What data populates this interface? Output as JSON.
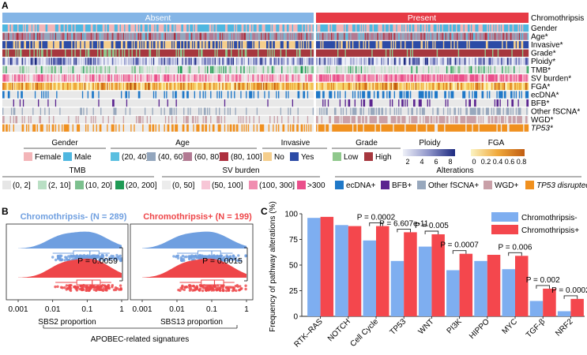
{
  "panelA": {
    "label": "A",
    "groups": [
      {
        "name": "Absent",
        "color": "#84b5e6",
        "count": 289
      },
      {
        "name": "Present",
        "color": "#e63a45",
        "count": 199
      }
    ],
    "rows": [
      {
        "label": "Chromothripsis",
        "italic": false,
        "kind": "group"
      },
      {
        "label": "Gender",
        "italic": false,
        "kind": "cat",
        "colors": [
          "#f3b5b8",
          "#4fb7e0"
        ],
        "weights": [
          0.45,
          0.55
        ]
      },
      {
        "label": "Age*",
        "italic": false,
        "kind": "cat",
        "colors": [
          "#5bbfe0",
          "#93a6bd",
          "#b27a93",
          "#ad2f3e"
        ],
        "weights": [
          0.1,
          0.3,
          0.45,
          0.15
        ]
      },
      {
        "label": "Invasive*",
        "italic": false,
        "kind": "cat",
        "colors": [
          "#f5ce8c",
          "#2c4ba6"
        ],
        "weights": [
          0.45,
          0.55
        ],
        "biasPresent": [
          0.2,
          0.8
        ]
      },
      {
        "label": "Grade*",
        "italic": false,
        "kind": "cat",
        "colors": [
          "#8fc88c",
          "#a6373e"
        ],
        "weights": [
          0.25,
          0.75
        ],
        "biasPresent": [
          0.1,
          0.9
        ]
      },
      {
        "label": "Ploidy*",
        "italic": false,
        "kind": "cont",
        "colors": [
          "#eef0f8",
          "#c9cce6",
          "#8e94c9",
          "#4b57a8",
          "#1d2a80"
        ],
        "weights": [
          0.3,
          0.3,
          0.2,
          0.12,
          0.08
        ]
      },
      {
        "label": "TMB*",
        "italic": false,
        "kind": "cat",
        "colors": [
          "#e6e6e6",
          "#b9dfc4",
          "#7cc08e",
          "#1f9a55"
        ],
        "weights": [
          0.6,
          0.2,
          0.13,
          0.07
        ]
      },
      {
        "label": "SV burden*",
        "italic": false,
        "kind": "cat",
        "colors": [
          "#ececec",
          "#f7c6d6",
          "#f08db0",
          "#ea4f8b"
        ],
        "weights": [
          0.25,
          0.3,
          0.28,
          0.17
        ],
        "biasPresent": [
          0.05,
          0.15,
          0.35,
          0.45
        ]
      },
      {
        "label": "FGA*",
        "italic": false,
        "kind": "cont",
        "colors": [
          "#fbf3c2",
          "#f6d36a",
          "#f0a93b",
          "#e0801e",
          "#c15d12"
        ],
        "weights": [
          0.2,
          0.3,
          0.25,
          0.15,
          0.1
        ]
      },
      {
        "label": "ecDNA*",
        "italic": false,
        "kind": "cat",
        "colors": [
          "#e8e8e8",
          "#1f78c8"
        ],
        "weights": [
          0.8,
          0.2
        ],
        "biasPresent": [
          0.6,
          0.4
        ]
      },
      {
        "label": "BFB*",
        "italic": false,
        "kind": "cat",
        "colors": [
          "#e8e8e8",
          "#5b2590"
        ],
        "weights": [
          0.93,
          0.07
        ],
        "biasPresent": [
          0.75,
          0.25
        ]
      },
      {
        "label": "Other fSCNA*",
        "italic": false,
        "kind": "cat",
        "colors": [
          "#e8e8e8",
          "#98a8bd"
        ],
        "weights": [
          0.85,
          0.15
        ],
        "biasPresent": [
          0.55,
          0.45
        ]
      },
      {
        "label": "WGD*",
        "italic": false,
        "kind": "cat",
        "colors": [
          "#ececec",
          "#c9a0a8"
        ],
        "weights": [
          0.75,
          0.25
        ],
        "biasPresent": [
          0.4,
          0.6
        ]
      },
      {
        "label": "TP53*",
        "italic": true,
        "kind": "cat",
        "colors": [
          "#ececec",
          "#f0901e"
        ],
        "weights": [
          0.6,
          0.4
        ],
        "biasPresent": [
          0.15,
          0.85
        ]
      }
    ],
    "legend_gender": {
      "title": "Gender",
      "items": [
        {
          "label": "Female",
          "color": "#f3b5b8"
        },
        {
          "label": "Male",
          "color": "#4fb7e0"
        }
      ]
    },
    "legend_age": {
      "title": "Age",
      "items": [
        {
          "label": "(20, 40]",
          "color": "#5bbfe0"
        },
        {
          "label": "(40, 60]",
          "color": "#93a6bd"
        },
        {
          "label": "(60, 80]",
          "color": "#b27a93"
        },
        {
          "label": "(80, 100]",
          "color": "#ad2f3e"
        }
      ]
    },
    "legend_invasive": {
      "title": "Invasive",
      "items": [
        {
          "label": "No",
          "color": "#f5ce8c"
        },
        {
          "label": "Yes",
          "color": "#2c4ba6"
        }
      ]
    },
    "legend_grade": {
      "title": "Grade",
      "items": [
        {
          "label": "Low",
          "color": "#8fc88c"
        },
        {
          "label": "High",
          "color": "#a6373e"
        }
      ]
    },
    "legend_ploidy": {
      "title": "Ploidy",
      "ticks": [
        "2",
        "4",
        "6",
        "8"
      ],
      "grad": [
        "#eef0f8",
        "#8e94c9",
        "#1d2a80"
      ]
    },
    "legend_fga": {
      "title": "FGA",
      "ticks": [
        "0",
        "0.2",
        "0.4",
        "0.6",
        "0.8"
      ],
      "grad": [
        "#fbf3c2",
        "#f0a93b",
        "#c15d12"
      ]
    },
    "legend_tmb": {
      "title": "TMB",
      "items": [
        {
          "label": "(0, 2]",
          "color": "#e6e6e6"
        },
        {
          "label": "(2, 10]",
          "color": "#b9dfc4"
        },
        {
          "label": "(10, 20]",
          "color": "#7cc08e"
        },
        {
          "label": "(20, 200]",
          "color": "#1f9a55"
        }
      ]
    },
    "legend_sv": {
      "title": "SV burden",
      "items": [
        {
          "label": "(0, 50]",
          "color": "#ececec"
        },
        {
          "label": "(50, 100]",
          "color": "#f7c6d6"
        },
        {
          "label": "(100, 300]",
          "color": "#f08db0"
        },
        {
          "label": ">300",
          "color": "#ea4f8b"
        }
      ]
    },
    "legend_alt": {
      "title": "Alterations",
      "items": [
        {
          "label": "ecDNA+",
          "color": "#1f78c8",
          "italic": false
        },
        {
          "label": "BFB+",
          "color": "#5b2590",
          "italic": false
        },
        {
          "label": "Other fSCNA+",
          "color": "#98a8bd",
          "italic": false
        },
        {
          "label": "WGD+",
          "color": "#c9a0a8",
          "italic": false
        },
        {
          "label": "TP53 disrupted",
          "color": "#f0901e",
          "italic": true
        }
      ]
    }
  },
  "panelB": {
    "label": "B",
    "title_neg": "Chromothripsis- (N = 289)",
    "title_pos": "Chromothripsis+ (N = 199)",
    "colors": {
      "neg": "#6f9fe0",
      "pos": "#ee4649"
    },
    "x_ticks": [
      "0.001",
      "0.01",
      "0.1",
      "1"
    ],
    "footer": "APOBEC-related signatures",
    "subplots": [
      {
        "xlabel": "SBS2 proportion",
        "p": "P = 0.0059",
        "neg": {
          "q1": 0.04,
          "median": 0.12,
          "q3": 0.22,
          "wlo": 0.01,
          "whi": 0.45
        },
        "pos": {
          "q1": 0.05,
          "median": 0.14,
          "q3": 0.24,
          "wlo": 0.012,
          "whi": 0.5
        }
      },
      {
        "xlabel": "SBS13 proportion",
        "p": "P = 0.0015",
        "neg": {
          "q1": 0.04,
          "median": 0.1,
          "q3": 0.18,
          "wlo": 0.01,
          "whi": 0.4
        },
        "pos": {
          "q1": 0.05,
          "median": 0.12,
          "q3": 0.22,
          "wlo": 0.012,
          "whi": 0.45
        }
      }
    ]
  },
  "chart_data": {
    "type": "bar",
    "panel_label": "C",
    "title": "",
    "ylabel": "Frequency of pathway alterations (%)",
    "xlabel": "",
    "ylim": [
      0,
      100
    ],
    "yticks": [
      0,
      25,
      50,
      75,
      100
    ],
    "yticklabels": [
      "0",
      "25",
      "50",
      "75",
      "100"
    ],
    "categories": [
      "RTK–RAS",
      "NOTCH",
      "Cell Cycle",
      "TP53",
      "WNT",
      "PI3K",
      "HIPPO",
      "MYC",
      "TGF-β",
      "NRF2"
    ],
    "series": [
      {
        "name": "Chromothripsis-",
        "color": "#7eaef0",
        "values": [
          96,
          89,
          74,
          54,
          68,
          45,
          54,
          46,
          15,
          5
        ]
      },
      {
        "name": "Chromothripsis+",
        "color": "#f4474d",
        "values": [
          97,
          88,
          88,
          82,
          80,
          61,
          60,
          59,
          27,
          17
        ]
      }
    ],
    "annotations": [
      {
        "category": "Cell Cycle",
        "text": "P = 0.0002"
      },
      {
        "category": "TP53",
        "text": "P = 6.607e-11"
      },
      {
        "category": "WNT",
        "text": "P = 0.005"
      },
      {
        "category": "PI3K",
        "text": "P = 0.0007"
      },
      {
        "category": "MYC",
        "text": "P = 0.006"
      },
      {
        "category": "TGF-β",
        "text": "P = 0.002"
      },
      {
        "category": "NRF2",
        "text": "P = 0.0002"
      }
    ],
    "legend": "top-right"
  }
}
